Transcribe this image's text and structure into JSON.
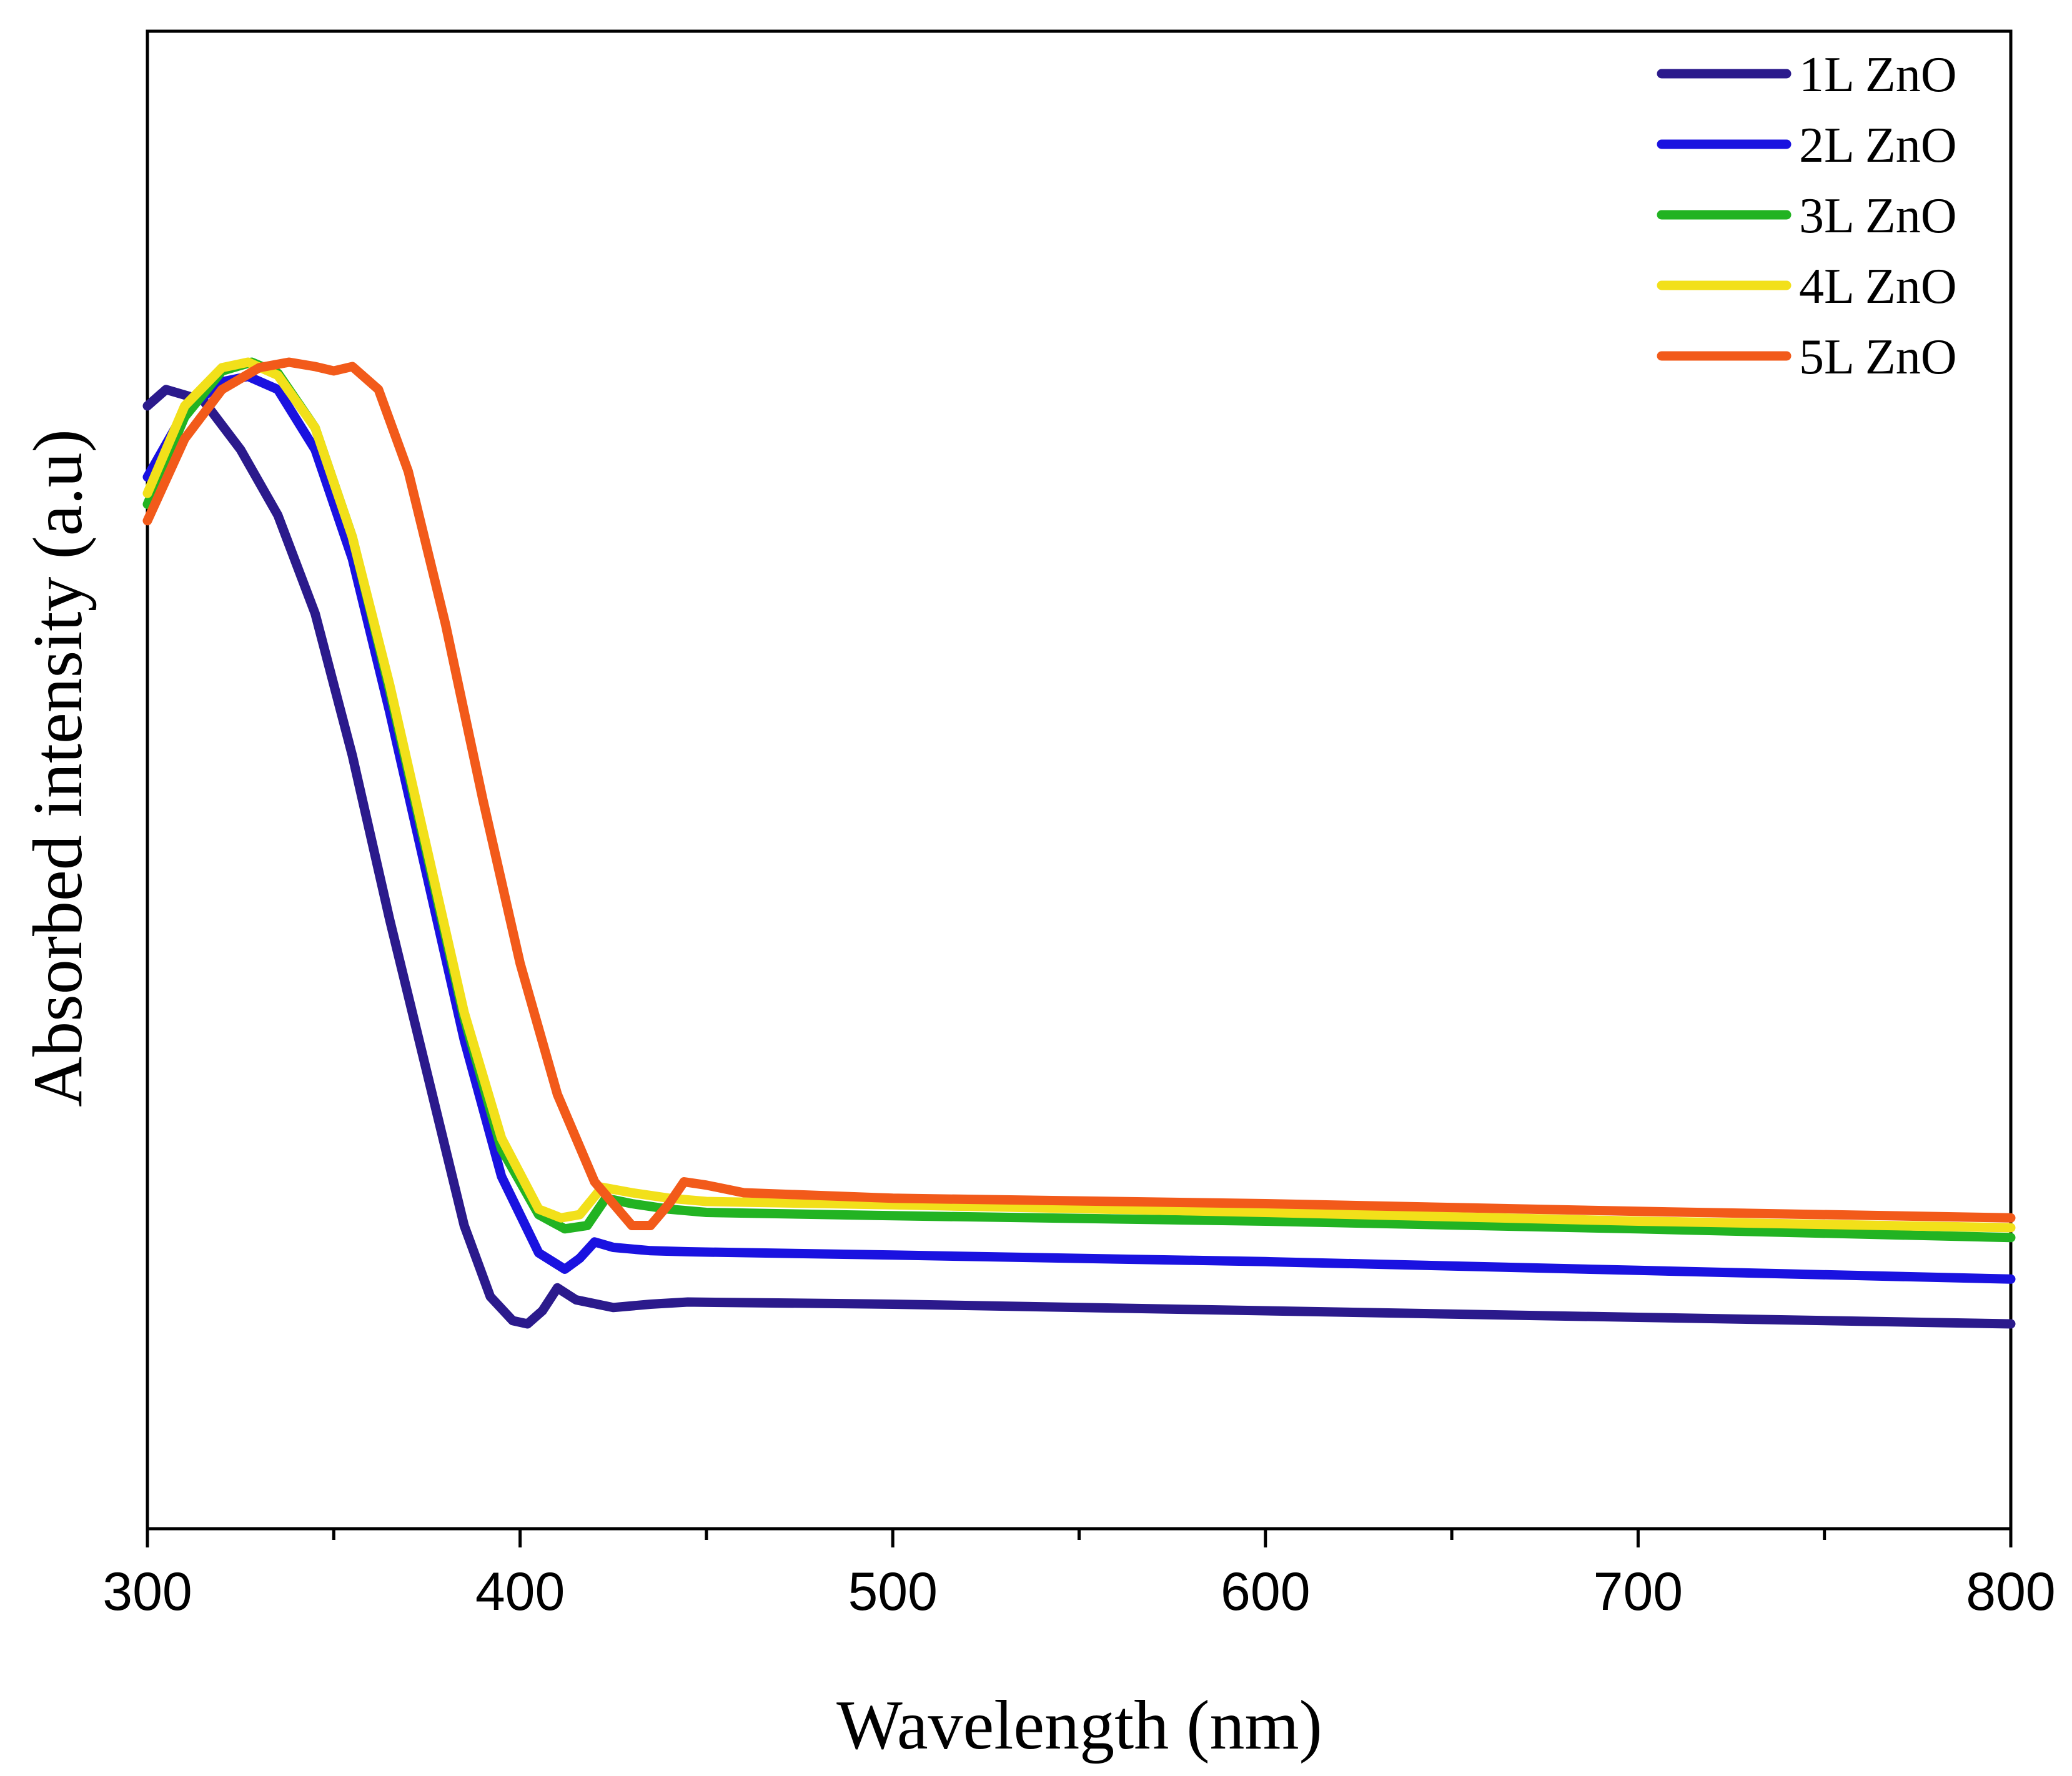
{
  "chart_data": {
    "type": "line",
    "title": "",
    "xlabel": "Wavelength (nm)",
    "ylabel": "Absorbed intensity (a.u)",
    "xlim": [
      300,
      800
    ],
    "ylim": [
      0,
      1.0
    ],
    "xticks": [
      300,
      400,
      500,
      600,
      700,
      800
    ],
    "xtick_labels": [
      "300",
      "400",
      "500",
      "600",
      "700",
      "800"
    ],
    "xminor_ticks": [
      350,
      450,
      550,
      650,
      750
    ],
    "yticks_shown": false,
    "grid": false,
    "legend": "top-right",
    "series": [
      {
        "name": "1L ZnO",
        "color": "#2b1a8c",
        "x": [
          300,
          305,
          315,
          325,
          335,
          345,
          355,
          365,
          375,
          385,
          392,
          398,
          402,
          406,
          410,
          415,
          425,
          435,
          445,
          500,
          600,
          700,
          800
        ],
        "y": [
          0.84,
          0.855,
          0.845,
          0.8,
          0.74,
          0.65,
          0.52,
          0.37,
          0.23,
          0.09,
          0.025,
          0.003,
          0.0,
          0.012,
          0.033,
          0.022,
          0.015,
          0.018,
          0.02,
          0.018,
          0.012,
          0.006,
          0.0
        ]
      },
      {
        "name": "2L ZnO",
        "color": "#1a12e0",
        "x": [
          300,
          310,
          320,
          327,
          335,
          345,
          355,
          365,
          375,
          385,
          395,
          405,
          412,
          416,
          420,
          425,
          435,
          445,
          500,
          600,
          700,
          800
        ],
        "y": [
          0.775,
          0.835,
          0.862,
          0.867,
          0.855,
          0.8,
          0.7,
          0.56,
          0.41,
          0.26,
          0.135,
          0.065,
          0.05,
          0.06,
          0.075,
          0.07,
          0.067,
          0.066,
          0.063,
          0.057,
          0.049,
          0.041
        ]
      },
      {
        "name": "3L ZnO",
        "color": "#22b322",
        "x": [
          300,
          310,
          320,
          328,
          335,
          345,
          355,
          365,
          375,
          385,
          395,
          405,
          412,
          418,
          423,
          430,
          440,
          450,
          500,
          600,
          700,
          800
        ],
        "y": [
          0.75,
          0.83,
          0.872,
          0.88,
          0.87,
          0.82,
          0.72,
          0.58,
          0.43,
          0.28,
          0.16,
          0.1,
          0.087,
          0.09,
          0.115,
          0.11,
          0.105,
          0.102,
          0.099,
          0.094,
          0.087,
          0.079
        ]
      },
      {
        "name": "4L ZnO",
        "color": "#f2e01a",
        "x": [
          300,
          310,
          320,
          327,
          335,
          345,
          355,
          365,
          375,
          385,
          395,
          405,
          411,
          416,
          422,
          430,
          440,
          450,
          500,
          600,
          700,
          800
        ],
        "y": [
          0.76,
          0.84,
          0.875,
          0.88,
          0.868,
          0.82,
          0.72,
          0.585,
          0.435,
          0.285,
          0.17,
          0.105,
          0.097,
          0.1,
          0.125,
          0.12,
          0.115,
          0.112,
          0.109,
          0.102,
          0.094,
          0.088
        ]
      },
      {
        "name": "5L ZnO",
        "color": "#f25a1a",
        "x": [
          300,
          310,
          320,
          330,
          338,
          345,
          350,
          355,
          362,
          370,
          380,
          390,
          400,
          410,
          420,
          430,
          435,
          440,
          444,
          450,
          460,
          500,
          600,
          700,
          800
        ],
        "y": [
          0.735,
          0.81,
          0.855,
          0.875,
          0.88,
          0.876,
          0.872,
          0.876,
          0.855,
          0.78,
          0.64,
          0.48,
          0.33,
          0.21,
          0.13,
          0.09,
          0.09,
          0.11,
          0.13,
          0.127,
          0.12,
          0.115,
          0.11,
          0.103,
          0.097
        ]
      }
    ]
  }
}
